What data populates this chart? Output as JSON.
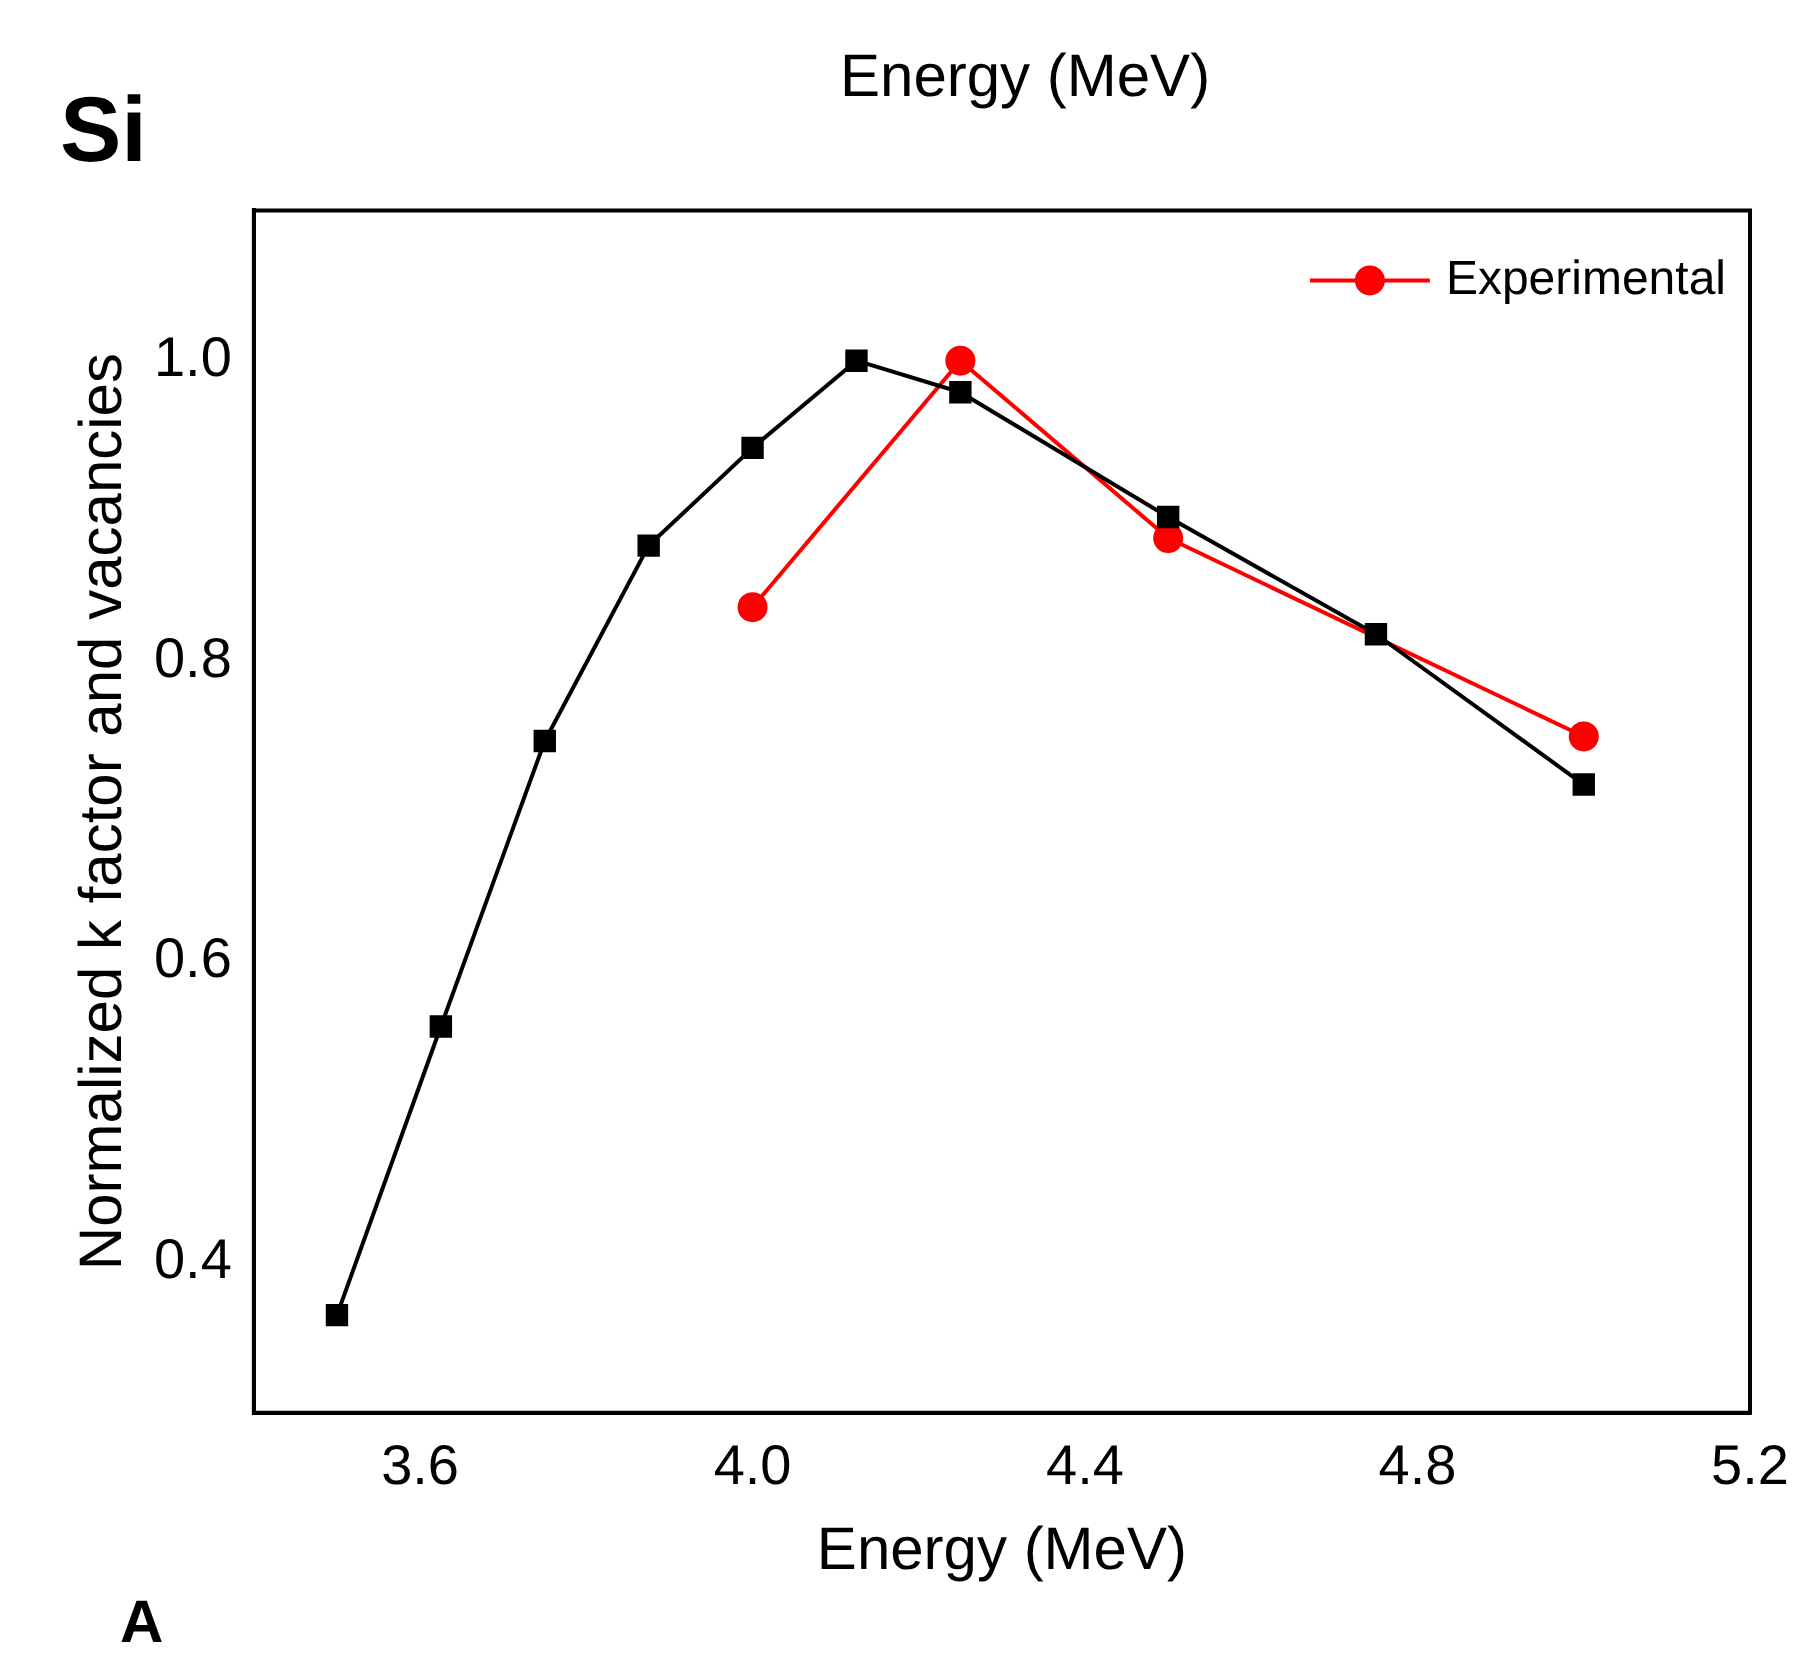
{
  "chart_data": {
    "type": "line",
    "title": "Si",
    "xlabel": "Energy (MeV)",
    "ylabel": "Normalized k factor and vacancies",
    "annotations": [
      "Energy (MeV)",
      "A"
    ],
    "xlim": [
      3.4,
      5.2
    ],
    "xticks": [
      3.6,
      {
        "value": 4,
        "label": "4.0"
      },
      4.4,
      4.8,
      5.2
    ],
    "ylim": [
      0.3,
      1.1
    ],
    "yticks": [
      0.4,
      0.6,
      0.8,
      {
        "value": 1,
        "label": "1.0"
      }
    ],
    "grid": false,
    "legend": "top right",
    "line_style": "solid",
    "series": [
      {
        "color": "#000000",
        "marker": "square",
        "x": [
          3.5,
          3.625,
          3.75,
          3.875,
          4.0,
          4.125,
          4.25,
          4.5,
          4.75,
          5.0
        ],
        "values": [
          0.365,
          0.557,
          0.747,
          0.877,
          0.942,
          1.0,
          0.979,
          0.896,
          0.818,
          0.718
        ]
      },
      {
        "name": "Experimental",
        "color": "#ff0000",
        "marker": "circle",
        "x": [
          4.0,
          4.25,
          4.5,
          5.0
        ],
        "values": [
          0.836,
          1.0,
          0.882,
          0.75
        ]
      }
    ]
  }
}
